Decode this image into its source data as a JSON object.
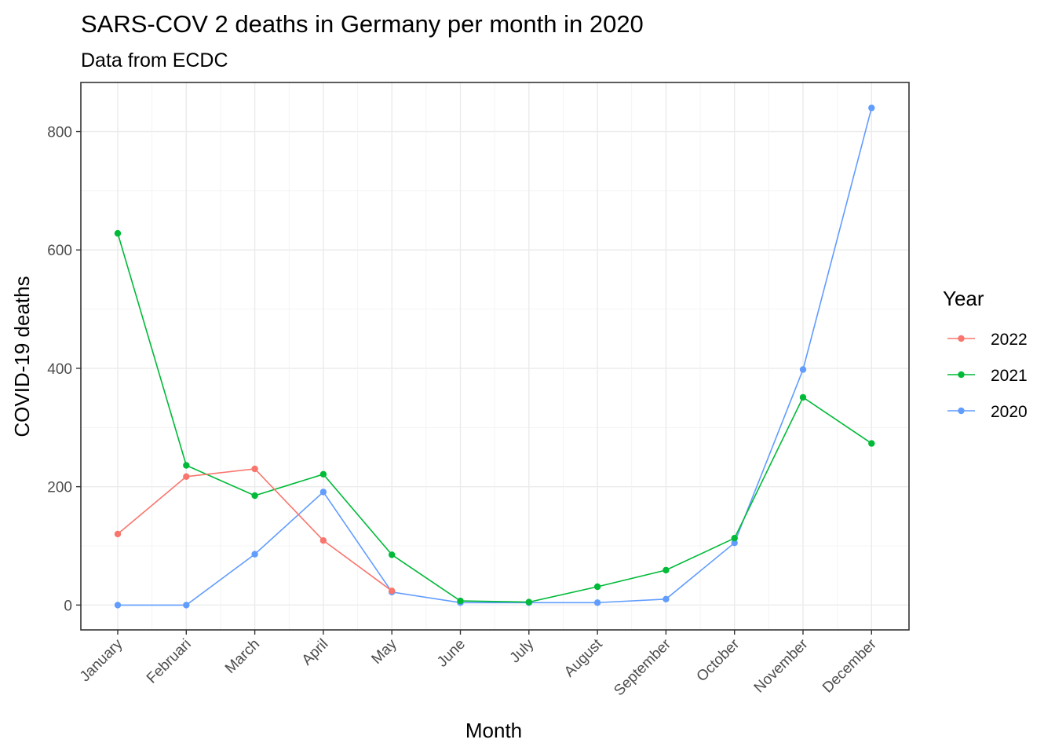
{
  "chart_data": {
    "type": "line",
    "title": "SARS-COV 2 deaths in Germany per month in 2020",
    "subtitle": "Data from ECDC",
    "xlabel": "Month",
    "ylabel": "COVID-19 deaths",
    "categories": [
      "January",
      "Februari",
      "March",
      "April",
      "May",
      "June",
      "July",
      "August",
      "September",
      "October",
      "November",
      "December"
    ],
    "y_ticks": [
      0,
      200,
      400,
      600,
      800
    ],
    "y_tick_labels": [
      "0",
      "200",
      "400",
      "600",
      "800"
    ],
    "ylim": [
      -42,
      883
    ],
    "grid": true,
    "legend": {
      "title": "Year",
      "position": "right",
      "entries": [
        "2022",
        "2021",
        "2020"
      ]
    },
    "series": [
      {
        "name": "2022",
        "color": "#f8766d",
        "values": [
          120,
          217,
          230,
          109,
          24,
          null,
          null,
          null,
          null,
          null,
          null,
          null
        ]
      },
      {
        "name": "2021",
        "color": "#00ba38",
        "values": [
          628,
          236,
          185,
          221,
          85,
          7,
          5,
          31,
          59,
          113,
          351,
          273
        ]
      },
      {
        "name": "2020",
        "color": "#619cff",
        "values": [
          0,
          0,
          86,
          191,
          22,
          4,
          4,
          4,
          10,
          105,
          398,
          840
        ]
      }
    ]
  }
}
